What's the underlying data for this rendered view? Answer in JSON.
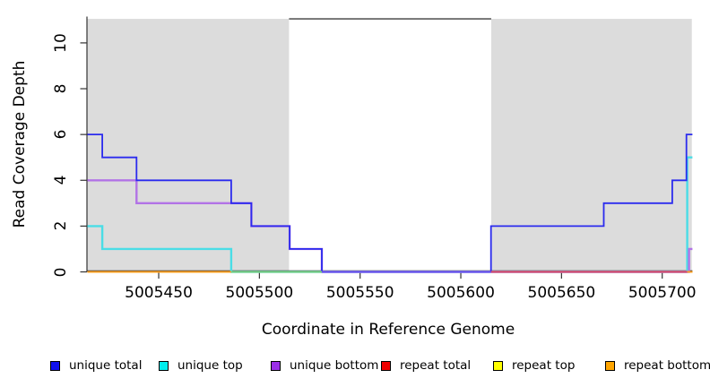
{
  "chart_data": {
    "type": "line",
    "subtype": "step-coverage-plot",
    "title": "",
    "xlabel": "Coordinate in Reference Genome",
    "ylabel": "Read Coverage Depth",
    "xlim": [
      5005414.6,
      5005715.0
    ],
    "ylim": [
      0,
      11.15
    ],
    "grid": false,
    "x_ticks": [
      5005450,
      5005500,
      5005550,
      5005600,
      5005650,
      5005700
    ],
    "x_tick_labels": [
      "5005450",
      "5005500",
      "5005550",
      "5005600",
      "5005650",
      "5005700"
    ],
    "y_ticks": [
      0,
      2,
      4,
      6,
      8,
      10
    ],
    "y_tick_labels": [
      "0",
      "2",
      "4",
      "6",
      "8",
      "10"
    ],
    "shaded_regions": [
      {
        "name": "left-gray-region",
        "x1": 5005414.6,
        "x2": 5005514.7,
        "color": "#DCDCDC"
      },
      {
        "name": "right-gray-region",
        "x1": 5005615.1,
        "x2": 5005714.7,
        "color": "#DCDCDC"
      }
    ],
    "gap_top_line": {
      "x1": 5005514.7,
      "x2": 5005615.1,
      "y": 11.05,
      "color": "#5a5a5a"
    },
    "series": [
      {
        "name": "repeat total",
        "color": "#DD2222",
        "width": 1.6,
        "steps": [
          [
            5005414.6,
            0
          ],
          [
            5005715.0,
            0
          ]
        ]
      },
      {
        "name": "repeat top",
        "color": "#F5F500",
        "width": 1.6,
        "steps": [
          [
            5005414.6,
            0
          ],
          [
            5005715.0,
            0
          ]
        ]
      },
      {
        "name": "repeat bottom",
        "color": "#FFA020",
        "width": 1.6,
        "steps": [
          [
            5005414.6,
            0
          ],
          [
            5005715.0,
            0
          ]
        ]
      },
      {
        "name": "unique top",
        "color": "#4ADDE6",
        "width": 2.4,
        "steps": [
          [
            5005414.6,
            2
          ],
          [
            5005422,
            1
          ],
          [
            5005486,
            0
          ],
          [
            5005712.4,
            5
          ],
          [
            5005715.0,
            5
          ]
        ]
      },
      {
        "name": "unique bottom",
        "color": "#B273E6",
        "width": 2.4,
        "steps": [
          [
            5005414.6,
            4
          ],
          [
            5005439,
            3
          ],
          [
            5005496,
            2
          ],
          [
            5005515,
            1
          ],
          [
            5005531,
            0
          ],
          [
            5005713.3,
            1
          ],
          [
            5005715.0,
            1
          ]
        ]
      },
      {
        "name": "unique total",
        "color": "#2B2BEE",
        "width": 1.8,
        "steps": [
          [
            5005414.6,
            6
          ],
          [
            5005422,
            5
          ],
          [
            5005439,
            4
          ],
          [
            5005486,
            3
          ],
          [
            5005496,
            2
          ],
          [
            5005515,
            1
          ],
          [
            5005531,
            0
          ],
          [
            5005615,
            2
          ],
          [
            5005671,
            3
          ],
          [
            5005705,
            4
          ],
          [
            5005712,
            6
          ],
          [
            5005715.0,
            6
          ]
        ]
      }
    ],
    "zero_line_segments": [
      {
        "x1": 5005414.6,
        "x2": 5005486,
        "color": "#FFA020"
      },
      {
        "x1": 5005486,
        "x2": 5005531,
        "color": "#7FCE7F"
      },
      {
        "x1": 5005531,
        "x2": 5005615,
        "color": "#6A52F0"
      },
      {
        "x1": 5005615,
        "x2": 5005712.4,
        "color": "#E04A66"
      },
      {
        "x1": 5005712.4,
        "x2": 5005715.0,
        "color": "#FFA020"
      }
    ]
  },
  "legend": {
    "items": [
      {
        "label": "unique total",
        "color": "#1111EE"
      },
      {
        "label": "unique top",
        "color": "#00EEEE"
      },
      {
        "label": "unique bottom",
        "color": "#9B30E8"
      },
      {
        "label": "repeat total",
        "color": "#EE0000"
      },
      {
        "label": "repeat top",
        "color": "#FFFF00"
      },
      {
        "label": "repeat bottom",
        "color": "#FFA500"
      }
    ]
  }
}
